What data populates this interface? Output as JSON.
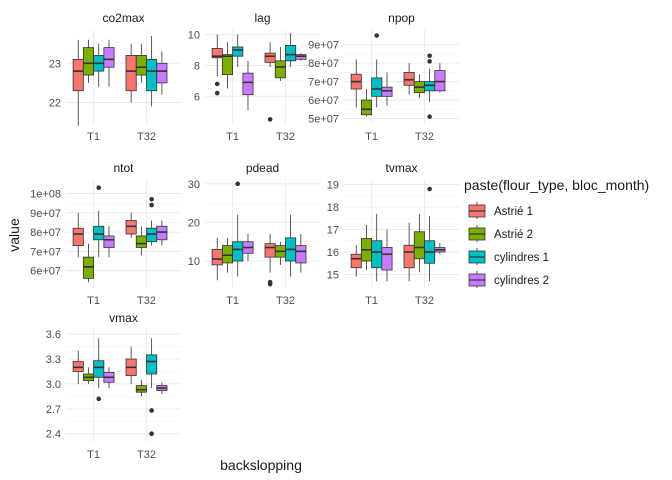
{
  "chart_data": {
    "type": "boxplot",
    "facet_by": "variable",
    "xlabel": "backslopping",
    "ylabel": "value",
    "categories": [
      "T1",
      "T32"
    ],
    "legend": {
      "title": "paste(flour_type, bloc_month)",
      "placement": "right",
      "groups": [
        "Astrié 1",
        "Astrié 2",
        "cylindres 1",
        "cylindres 2"
      ]
    },
    "colors": [
      "#F8766D",
      "#7CAE00",
      "#00BFC4",
      "#C77CFF"
    ],
    "grid": true,
    "scales": "free_y",
    "panels": [
      {
        "title": "co2max",
        "ylim": [
          21.45,
          23.85
        ],
        "ticks": [
          {
            "v": 22,
            "label": "22"
          },
          {
            "v": 23,
            "label": "23"
          }
        ],
        "boxes": [
          {
            "cat": "T1",
            "group": 0,
            "min": 21.4,
            "q1": 22.3,
            "median": 22.8,
            "q3": 23.1,
            "max": 23.6,
            "outliers": []
          },
          {
            "cat": "T1",
            "group": 1,
            "min": 22.5,
            "q1": 22.7,
            "median": 23.0,
            "q3": 23.4,
            "max": 23.6,
            "outliers": []
          },
          {
            "cat": "T1",
            "group": 2,
            "min": 22.4,
            "q1": 22.8,
            "median": 23.0,
            "q3": 23.2,
            "max": 23.5,
            "outliers": []
          },
          {
            "cat": "T1",
            "group": 3,
            "min": 22.4,
            "q1": 22.9,
            "median": 23.1,
            "q3": 23.4,
            "max": 23.6,
            "outliers": []
          },
          {
            "cat": "T32",
            "group": 0,
            "min": 22.0,
            "q1": 22.3,
            "median": 22.8,
            "q3": 23.2,
            "max": 23.5,
            "outliers": []
          },
          {
            "cat": "T32",
            "group": 1,
            "min": 22.5,
            "q1": 22.7,
            "median": 22.9,
            "q3": 23.2,
            "max": 23.5,
            "outliers": []
          },
          {
            "cat": "T32",
            "group": 2,
            "min": 21.9,
            "q1": 22.3,
            "median": 22.8,
            "q3": 23.1,
            "max": 23.7,
            "outliers": []
          },
          {
            "cat": "T32",
            "group": 3,
            "min": 22.2,
            "q1": 22.5,
            "median": 22.8,
            "q3": 23.0,
            "max": 23.3,
            "outliers": []
          }
        ]
      },
      {
        "title": "lag",
        "ylim": [
          4.2,
          10.3
        ],
        "ticks": [
          {
            "v": 6,
            "label": "6"
          },
          {
            "v": 8,
            "label": "8"
          },
          {
            "v": 10,
            "label": "10"
          }
        ],
        "boxes": [
          {
            "cat": "T1",
            "group": 0,
            "min": 7.3,
            "q1": 8.5,
            "median": 8.6,
            "q3": 9.1,
            "max": 10.0,
            "outliers": [
              6.2,
              6.8
            ]
          },
          {
            "cat": "T1",
            "group": 1,
            "min": 6.5,
            "q1": 7.4,
            "median": 8.6,
            "q3": 8.7,
            "max": 9.5,
            "outliers": []
          },
          {
            "cat": "T1",
            "group": 2,
            "min": 7.9,
            "q1": 8.6,
            "median": 9.0,
            "q3": 9.2,
            "max": 10.0,
            "outliers": []
          },
          {
            "cat": "T1",
            "group": 3,
            "min": 5.1,
            "q1": 6.1,
            "median": 6.9,
            "q3": 7.5,
            "max": 8.3,
            "outliers": []
          },
          {
            "cat": "T32",
            "group": 0,
            "min": 7.9,
            "q1": 8.2,
            "median": 8.6,
            "q3": 8.8,
            "max": 9.5,
            "outliers": [
              4.5
            ]
          },
          {
            "cat": "T32",
            "group": 1,
            "min": 7.0,
            "q1": 7.2,
            "median": 7.9,
            "q3": 8.3,
            "max": 9.2,
            "outliers": []
          },
          {
            "cat": "T32",
            "group": 2,
            "min": 7.9,
            "q1": 8.3,
            "median": 8.7,
            "q3": 9.3,
            "max": 10.1,
            "outliers": []
          },
          {
            "cat": "T32",
            "group": 3,
            "min": 8.3,
            "q1": 8.4,
            "median": 8.6,
            "q3": 8.7,
            "max": 8.8,
            "outliers": []
          }
        ]
      },
      {
        "title": "npop",
        "ylim": [
          47000000,
          98000000
        ],
        "ticks": [
          {
            "v": 50000000,
            "label": "5e+07"
          },
          {
            "v": 60000000,
            "label": "6e+07"
          },
          {
            "v": 70000000,
            "label": "7e+07"
          },
          {
            "v": 80000000,
            "label": "8e+07"
          },
          {
            "v": 90000000,
            "label": "9e+07"
          }
        ],
        "boxes": [
          {
            "cat": "T1",
            "group": 0,
            "min": 56000000,
            "q1": 66000000,
            "median": 70000000,
            "q3": 74000000,
            "max": 82000000,
            "outliers": []
          },
          {
            "cat": "T1",
            "group": 1,
            "min": 51000000,
            "q1": 52000000,
            "median": 55000000,
            "q3": 60000000,
            "max": 66000000,
            "outliers": []
          },
          {
            "cat": "T1",
            "group": 2,
            "min": 56000000,
            "q1": 62000000,
            "median": 66000000,
            "q3": 72000000,
            "max": 82000000,
            "outliers": [
              95000000
            ]
          },
          {
            "cat": "T1",
            "group": 3,
            "min": 57000000,
            "q1": 62000000,
            "median": 65000000,
            "q3": 67000000,
            "max": 75000000,
            "outliers": []
          },
          {
            "cat": "T32",
            "group": 0,
            "min": 63000000,
            "q1": 68000000,
            "median": 71000000,
            "q3": 75000000,
            "max": 80000000,
            "outliers": []
          },
          {
            "cat": "T32",
            "group": 1,
            "min": 61000000,
            "q1": 64000000,
            "median": 67000000,
            "q3": 70000000,
            "max": 74000000,
            "outliers": []
          },
          {
            "cat": "T32",
            "group": 2,
            "min": 59000000,
            "q1": 65000000,
            "median": 68000000,
            "q3": 70000000,
            "max": 77000000,
            "outliers": [
              51000000,
              81000000,
              84000000
            ]
          },
          {
            "cat": "T32",
            "group": 3,
            "min": 64000000,
            "q1": 65000000,
            "median": 70000000,
            "q3": 76000000,
            "max": 80000000,
            "outliers": []
          }
        ]
      },
      {
        "title": "ntot",
        "ylim": [
          51000000,
          107000000
        ],
        "ticks": [
          {
            "v": 60000000,
            "label": "6e+07"
          },
          {
            "v": 70000000,
            "label": "7e+07"
          },
          {
            "v": 80000000,
            "label": "8e+07"
          },
          {
            "v": 90000000,
            "label": "9e+07"
          },
          {
            "v": 100000000,
            "label": "1e+08"
          }
        ],
        "boxes": [
          {
            "cat": "T1",
            "group": 0,
            "min": 67000000,
            "q1": 73000000,
            "median": 79000000,
            "q3": 82000000,
            "max": 90000000,
            "outliers": []
          },
          {
            "cat": "T1",
            "group": 1,
            "min": 54000000,
            "q1": 56000000,
            "median": 62000000,
            "q3": 67000000,
            "max": 74000000,
            "outliers": []
          },
          {
            "cat": "T1",
            "group": 2,
            "min": 67000000,
            "q1": 76000000,
            "median": 79000000,
            "q3": 83000000,
            "max": 91000000,
            "outliers": [
              103000000
            ]
          },
          {
            "cat": "T1",
            "group": 3,
            "min": 67000000,
            "q1": 72000000,
            "median": 76000000,
            "q3": 78000000,
            "max": 83000000,
            "outliers": []
          },
          {
            "cat": "T32",
            "group": 0,
            "min": 77000000,
            "q1": 79000000,
            "median": 83000000,
            "q3": 86000000,
            "max": 90000000,
            "outliers": []
          },
          {
            "cat": "T32",
            "group": 1,
            "min": 68000000,
            "q1": 72000000,
            "median": 74000000,
            "q3": 78000000,
            "max": 83000000,
            "outliers": []
          },
          {
            "cat": "T32",
            "group": 2,
            "min": 73000000,
            "q1": 75000000,
            "median": 79000000,
            "q3": 82000000,
            "max": 86000000,
            "outliers": [
              94000000,
              97000000
            ]
          },
          {
            "cat": "T32",
            "group": 3,
            "min": 73000000,
            "q1": 76000000,
            "median": 80000000,
            "q3": 83000000,
            "max": 86000000,
            "outliers": []
          }
        ]
      },
      {
        "title": "pdead",
        "ylim": [
          3,
          31
        ],
        "ticks": [
          {
            "v": 10,
            "label": "10"
          },
          {
            "v": 20,
            "label": "20"
          },
          {
            "v": 30,
            "label": "30"
          }
        ],
        "boxes": [
          {
            "cat": "T1",
            "group": 0,
            "min": 5.0,
            "q1": 9.0,
            "median": 10.5,
            "q3": 13.0,
            "max": 16.0,
            "outliers": []
          },
          {
            "cat": "T1",
            "group": 1,
            "min": 7.0,
            "q1": 9.5,
            "median": 11.5,
            "q3": 14.0,
            "max": 16.0,
            "outliers": []
          },
          {
            "cat": "T1",
            "group": 2,
            "min": 6.0,
            "q1": 10.0,
            "median": 13.0,
            "q3": 15.0,
            "max": 22.0,
            "outliers": [
              30.0
            ]
          },
          {
            "cat": "T1",
            "group": 3,
            "min": 10.0,
            "q1": 12.0,
            "median": 13.5,
            "q3": 15.0,
            "max": 17.0,
            "outliers": []
          },
          {
            "cat": "T32",
            "group": 0,
            "min": 7.0,
            "q1": 11.0,
            "median": 13.5,
            "q3": 14.5,
            "max": 17.0,
            "outliers": [
              4.0,
              4.5
            ]
          },
          {
            "cat": "T32",
            "group": 1,
            "min": 9.0,
            "q1": 11.0,
            "median": 12.5,
            "q3": 14.0,
            "max": 15.0,
            "outliers": []
          },
          {
            "cat": "T32",
            "group": 2,
            "min": 6.0,
            "q1": 10.0,
            "median": 13.0,
            "q3": 16.0,
            "max": 22.0,
            "outliers": []
          },
          {
            "cat": "T32",
            "group": 3,
            "min": 7.0,
            "q1": 9.5,
            "median": 12.5,
            "q3": 14.0,
            "max": 17.0,
            "outliers": []
          }
        ]
      },
      {
        "title": "tvmax",
        "ylim": [
          14.4,
          19.2
        ],
        "ticks": [
          {
            "v": 15,
            "label": "15"
          },
          {
            "v": 16,
            "label": "16"
          },
          {
            "v": 17,
            "label": "17"
          },
          {
            "v": 18,
            "label": "18"
          },
          {
            "v": 19,
            "label": "19"
          }
        ],
        "boxes": [
          {
            "cat": "T1",
            "group": 0,
            "min": 14.9,
            "q1": 15.3,
            "median": 15.7,
            "q3": 15.9,
            "max": 16.3,
            "outliers": []
          },
          {
            "cat": "T1",
            "group": 1,
            "min": 15.2,
            "q1": 15.6,
            "median": 16.1,
            "q3": 16.6,
            "max": 17.2,
            "outliers": []
          },
          {
            "cat": "T1",
            "group": 2,
            "min": 14.7,
            "q1": 15.3,
            "median": 16.0,
            "q3": 16.5,
            "max": 17.7,
            "outliers": []
          },
          {
            "cat": "T1",
            "group": 3,
            "min": 14.7,
            "q1": 15.2,
            "median": 15.9,
            "q3": 16.2,
            "max": 17.0,
            "outliers": []
          },
          {
            "cat": "T32",
            "group": 0,
            "min": 14.7,
            "q1": 15.3,
            "median": 16.0,
            "q3": 16.3,
            "max": 17.3,
            "outliers": []
          },
          {
            "cat": "T32",
            "group": 1,
            "min": 15.1,
            "q1": 15.7,
            "median": 16.2,
            "q3": 16.9,
            "max": 17.7,
            "outliers": []
          },
          {
            "cat": "T32",
            "group": 2,
            "min": 14.7,
            "q1": 15.5,
            "median": 16.0,
            "q3": 16.5,
            "max": 17.6,
            "outliers": [
              18.8
            ]
          },
          {
            "cat": "T32",
            "group": 3,
            "min": 15.9,
            "q1": 16.0,
            "median": 16.1,
            "q3": 16.2,
            "max": 16.4,
            "outliers": []
          }
        ]
      },
      {
        "title": "vmax",
        "ylim": [
          2.3,
          3.65
        ],
        "ticks": [
          {
            "v": 2.4,
            "label": "2.4"
          },
          {
            "v": 2.7,
            "label": "2.7"
          },
          {
            "v": 3.0,
            "label": "3.0"
          },
          {
            "v": 3.3,
            "label": "3.3"
          },
          {
            "v": 3.6,
            "label": "3.6"
          }
        ],
        "boxes": [
          {
            "cat": "T1",
            "group": 0,
            "min": 3.0,
            "q1": 3.15,
            "median": 3.2,
            "q3": 3.27,
            "max": 3.4,
            "outliers": []
          },
          {
            "cat": "T1",
            "group": 1,
            "min": 3.0,
            "q1": 3.04,
            "median": 3.08,
            "q3": 3.12,
            "max": 3.2,
            "outliers": []
          },
          {
            "cat": "T1",
            "group": 2,
            "min": 2.95,
            "q1": 3.08,
            "median": 3.2,
            "q3": 3.28,
            "max": 3.55,
            "outliers": [
              2.82
            ]
          },
          {
            "cat": "T1",
            "group": 3,
            "min": 2.95,
            "q1": 3.02,
            "median": 3.08,
            "q3": 3.14,
            "max": 3.2,
            "outliers": []
          },
          {
            "cat": "T32",
            "group": 0,
            "min": 3.0,
            "q1": 3.1,
            "median": 3.2,
            "q3": 3.3,
            "max": 3.45,
            "outliers": []
          },
          {
            "cat": "T32",
            "group": 1,
            "min": 2.85,
            "q1": 2.9,
            "median": 2.93,
            "q3": 2.98,
            "max": 3.05,
            "outliers": []
          },
          {
            "cat": "T32",
            "group": 2,
            "min": 2.95,
            "q1": 3.12,
            "median": 3.27,
            "q3": 3.35,
            "max": 3.55,
            "outliers": [
              2.4,
              2.68
            ]
          },
          {
            "cat": "T32",
            "group": 3,
            "min": 2.88,
            "q1": 2.92,
            "median": 2.95,
            "q3": 2.98,
            "max": 3.02,
            "outliers": []
          }
        ]
      }
    ]
  }
}
